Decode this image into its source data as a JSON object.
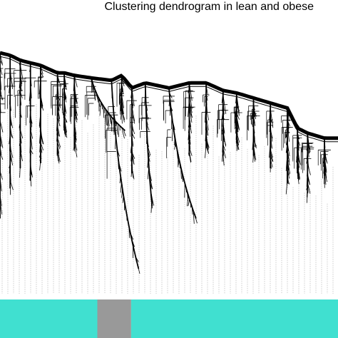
{
  "chart_data": {
    "type": "dendrogram",
    "title": "Clustering dendrogram in lean and obese",
    "xlabel": "",
    "ylabel": "",
    "ylim": [
      0.0,
      1.0
    ],
    "grid": false,
    "legend": "none",
    "colors": {
      "branch": "#000000",
      "leader": "#9a9a9a",
      "module_turquoise": "#40e0d0",
      "module_grey": "#999999"
    },
    "branches": [
      {
        "x": 0.0,
        "top": 0.96,
        "bottom": 0.3,
        "hook": 0.0
      },
      {
        "x": 0.03,
        "top": 0.95,
        "bottom": 0.42,
        "hook": 0.0
      },
      {
        "x": 0.06,
        "top": 0.93,
        "bottom": 0.5,
        "hook": 0.0
      },
      {
        "x": 0.09,
        "top": 0.92,
        "bottom": 0.45,
        "hook": 0.0
      },
      {
        "x": 0.12,
        "top": 0.91,
        "bottom": 0.52,
        "hook": 0.0
      },
      {
        "x": 0.17,
        "top": 0.88,
        "bottom": 0.55,
        "hook": 0.0
      },
      {
        "x": 0.19,
        "top": 0.88,
        "bottom": 0.65,
        "hook": 0.0
      },
      {
        "x": 0.22,
        "top": 0.87,
        "bottom": 0.58,
        "hook": 0.0
      },
      {
        "x": 0.27,
        "top": 0.86,
        "bottom": 0.65,
        "hook": 0.1
      },
      {
        "x": 0.33,
        "top": 0.85,
        "bottom": 0.1,
        "hook": 0.08
      },
      {
        "x": 0.36,
        "top": 0.87,
        "bottom": 0.72,
        "hook": 0.0
      },
      {
        "x": 0.39,
        "top": 0.82,
        "bottom": 0.48,
        "hook": 0.0
      },
      {
        "x": 0.43,
        "top": 0.84,
        "bottom": 0.35,
        "hook": 0.02
      },
      {
        "x": 0.5,
        "top": 0.82,
        "bottom": 0.3,
        "hook": 0.08
      },
      {
        "x": 0.56,
        "top": 0.84,
        "bottom": 0.55,
        "hook": 0.0
      },
      {
        "x": 0.61,
        "top": 0.84,
        "bottom": 0.58,
        "hook": 0.0
      },
      {
        "x": 0.66,
        "top": 0.81,
        "bottom": 0.55,
        "hook": 0.0
      },
      {
        "x": 0.7,
        "top": 0.8,
        "bottom": 0.6,
        "hook": 0.0
      },
      {
        "x": 0.75,
        "top": 0.78,
        "bottom": 0.55,
        "hook": 0.0
      },
      {
        "x": 0.8,
        "top": 0.76,
        "bottom": 0.5,
        "hook": 0.0
      },
      {
        "x": 0.85,
        "top": 0.74,
        "bottom": 0.44,
        "hook": 0.0
      },
      {
        "x": 0.88,
        "top": 0.66,
        "bottom": 0.48,
        "hook": 0.0
      },
      {
        "x": 0.91,
        "top": 0.64,
        "bottom": 0.4,
        "hook": 0.0
      },
      {
        "x": 0.96,
        "top": 0.62,
        "bottom": 0.47,
        "hook": 0.0
      }
    ],
    "modules": [
      {
        "module": "turquoise",
        "from": 0.0,
        "to": 0.288
      },
      {
        "module": "grey",
        "from": 0.288,
        "to": 0.388
      },
      {
        "module": "turquoise",
        "from": 0.388,
        "to": 1.0
      }
    ]
  }
}
